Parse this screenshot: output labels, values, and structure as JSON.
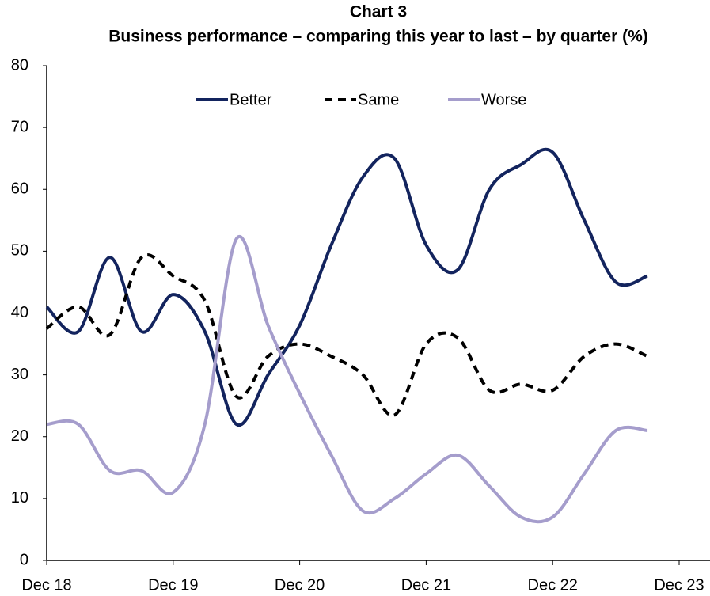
{
  "chart_data": {
    "type": "line",
    "title": "Chart 3",
    "subtitle": "Business performance – comparing this year to last – by quarter (%)",
    "x": [
      0,
      1,
      2,
      3,
      4,
      5,
      6,
      7,
      8,
      9,
      10,
      11,
      12,
      13,
      14,
      15,
      16,
      17,
      18,
      19
    ],
    "xlim": [
      0,
      21
    ],
    "xticks": [
      {
        "value": 0,
        "label": "Dec 18"
      },
      {
        "value": 4,
        "label": "Dec 19"
      },
      {
        "value": 8,
        "label": "Dec 20"
      },
      {
        "value": 12,
        "label": "Dec 21"
      },
      {
        "value": 16,
        "label": "Dec 22"
      },
      {
        "value": 20,
        "label": "Dec 23"
      }
    ],
    "ylim": [
      0,
      80
    ],
    "yticks": [
      0,
      10,
      20,
      30,
      40,
      50,
      60,
      70,
      80
    ],
    "legend": "top",
    "series": [
      {
        "name": "Better",
        "color": "#13245e",
        "dash": false,
        "values": [
          41,
          37,
          49,
          37,
          43,
          37,
          22,
          30,
          38,
          51,
          62,
          65,
          51,
          47,
          60,
          64,
          66,
          55,
          45,
          46
        ]
      },
      {
        "name": "Same",
        "color": "#000000",
        "dash": true,
        "values": [
          37.5,
          41,
          36.5,
          49,
          46,
          42,
          26.5,
          33,
          35,
          33,
          30,
          23.5,
          35,
          36,
          27.5,
          28.5,
          27.5,
          33,
          35,
          33
        ]
      },
      {
        "name": "Worse",
        "color": "#a59dcc",
        "dash": false,
        "values": [
          22,
          22,
          14.5,
          14.5,
          11,
          22,
          52,
          38,
          27,
          17,
          8,
          10,
          14,
          17,
          12,
          7,
          7,
          14,
          21,
          21
        ]
      }
    ]
  }
}
